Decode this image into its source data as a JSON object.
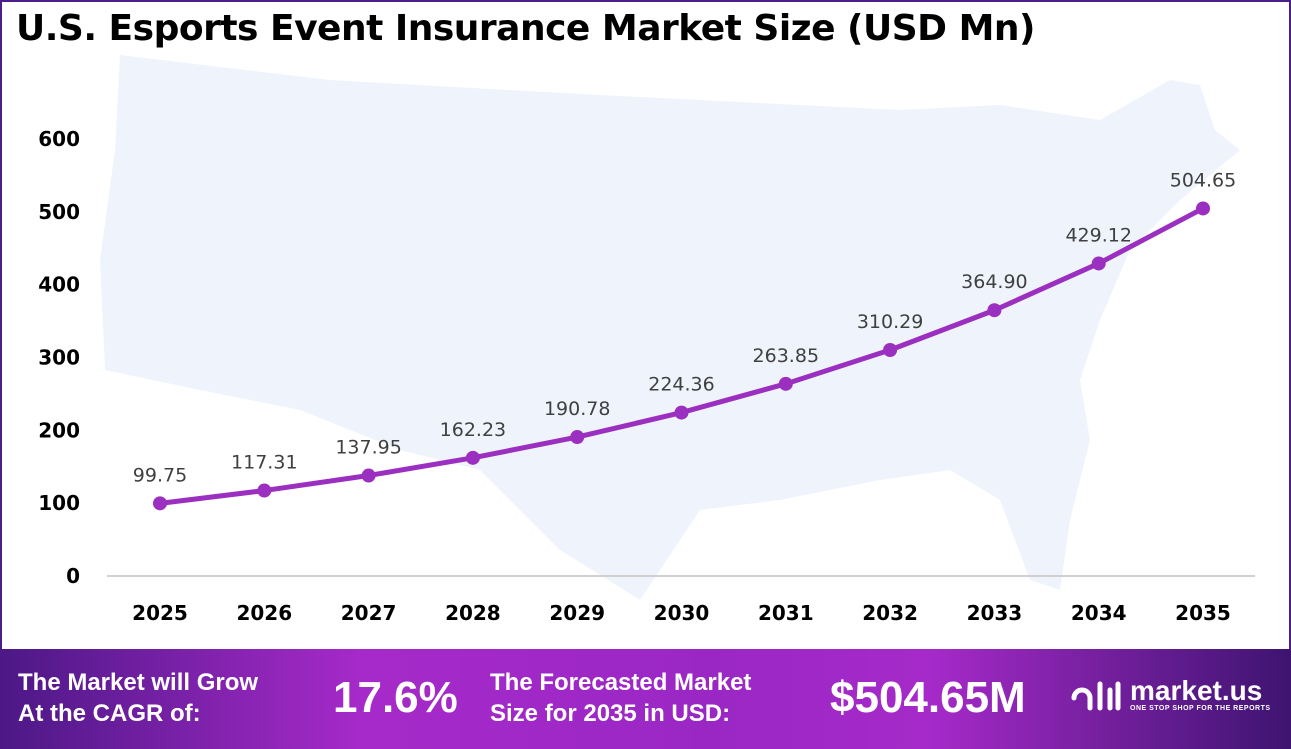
{
  "chart_data": {
    "type": "line",
    "title": "U.S. Esports Event Insurance Market Size (USD Mn)",
    "categories": [
      "2025",
      "2026",
      "2027",
      "2028",
      "2029",
      "2030",
      "2031",
      "2032",
      "2033",
      "2034",
      "2035"
    ],
    "values": [
      99.75,
      117.31,
      137.95,
      162.23,
      190.78,
      224.36,
      263.85,
      310.29,
      364.9,
      429.12,
      504.65
    ],
    "value_labels": [
      "99.75",
      "117.31",
      "137.95",
      "162.23",
      "190.78",
      "224.36",
      "263.85",
      "310.29",
      "364.90",
      "429.12",
      "504.65"
    ],
    "ylim": [
      0,
      600
    ],
    "yticks": [
      "0",
      "100",
      "200",
      "300",
      "400",
      "500",
      "600"
    ],
    "grid": false,
    "line_color": "#9b2fc0",
    "background_image": "us-map-silhouette"
  },
  "banner": {
    "cagr_label_line1": "The Market will Grow",
    "cagr_label_line2": "At the CAGR of:",
    "cagr_value": "17.6%",
    "forecast_label_line1": "The Forecasted Market",
    "forecast_label_line2": "Size for 2035 in USD:",
    "forecast_value": "$504.65M",
    "logo_name": "market.us",
    "logo_tagline": "ONE STOP SHOP FOR THE REPORTS"
  }
}
